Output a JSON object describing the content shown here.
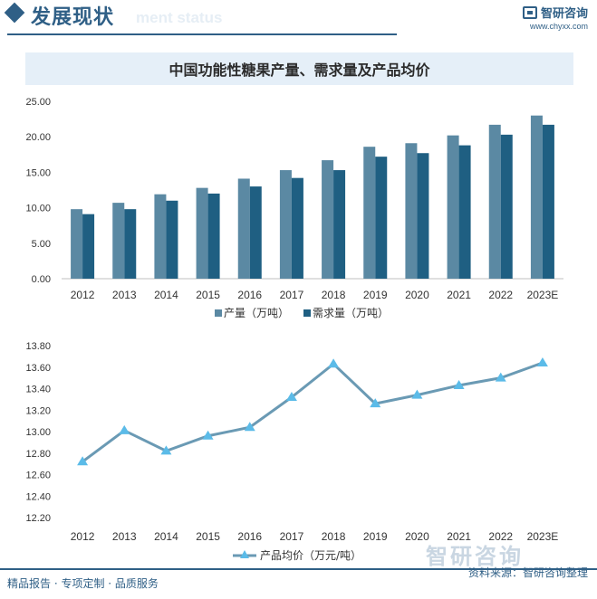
{
  "header": {
    "title": "发展现状",
    "ghost_text": "ment status",
    "logo_name": "智研咨询",
    "logo_url": "www.chyxx.com"
  },
  "watermark": {
    "text": "智研咨询"
  },
  "footer": {
    "left": "精品报告 · 专项定制 · 品质服务",
    "source": "资料来源：智研咨询整理"
  },
  "chart_data": [
    {
      "type": "bar",
      "title": "中国功能性糖果产量、需求量及产品均价",
      "categories": [
        "2012",
        "2013",
        "2014",
        "2015",
        "2016",
        "2017",
        "2018",
        "2019",
        "2020",
        "2021",
        "2022",
        "2023E"
      ],
      "series": [
        {
          "name": "产量（万吨）",
          "color": "#5b89a3",
          "values": [
            9.8,
            10.7,
            11.9,
            12.8,
            14.1,
            15.3,
            16.7,
            18.6,
            19.1,
            20.2,
            21.7,
            23.0
          ]
        },
        {
          "name": "需求量（万吨）",
          "color": "#1f5f82",
          "values": [
            9.1,
            9.8,
            11.0,
            12.0,
            13.0,
            14.2,
            15.3,
            17.2,
            17.7,
            18.8,
            20.3,
            21.7
          ]
        }
      ],
      "ylim": [
        0,
        25
      ],
      "yticks": [
        "0.00",
        "5.00",
        "10.00",
        "15.00",
        "20.00",
        "25.00"
      ],
      "legend": "bottom",
      "grid": false
    },
    {
      "type": "line",
      "categories": [
        "2012",
        "2013",
        "2014",
        "2015",
        "2016",
        "2017",
        "2018",
        "2019",
        "2020",
        "2021",
        "2022",
        "2023E"
      ],
      "series": [
        {
          "name": "产品均价（万元/吨）",
          "color": "#6a9ab4",
          "marker_color": "#5bbbe8",
          "values": [
            12.72,
            13.01,
            12.82,
            12.96,
            13.04,
            13.32,
            13.63,
            13.26,
            13.34,
            13.43,
            13.5,
            13.64
          ]
        }
      ],
      "ylim": [
        12.2,
        13.8
      ],
      "yticks": [
        "12.20",
        "12.40",
        "12.60",
        "12.80",
        "13.00",
        "13.20",
        "13.40",
        "13.60",
        "13.80"
      ],
      "legend": "bottom",
      "grid": false
    }
  ]
}
